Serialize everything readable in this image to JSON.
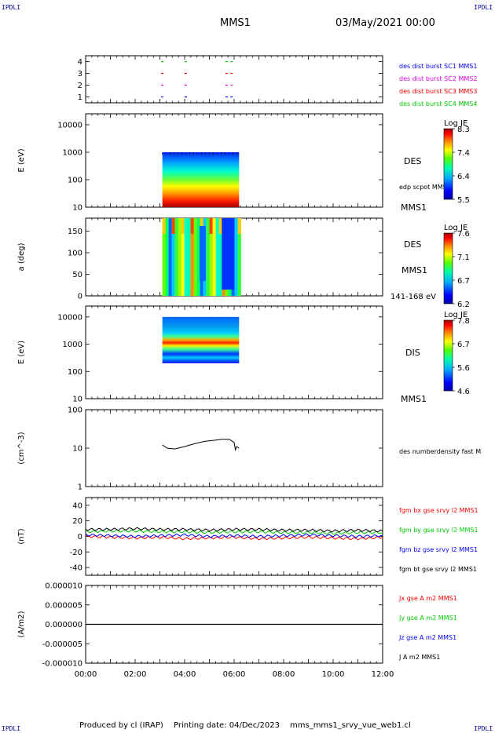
{
  "header": {
    "corner_tl": "IPDLI",
    "corner_tr": "IPDLI",
    "corner_bl": "IPDLI",
    "corner_br": "IPDLI",
    "mission": "MMS1",
    "datetime": "03/May/2021 00:00"
  },
  "footer": {
    "produced": "Produced by cl (IRAP)",
    "printing": "Printing date: 04/Dec/2023",
    "file": "mms_mms1_srvy_vue_web1.cl"
  },
  "colors": {
    "blue": "#0000ff",
    "magenta": "#dd00dd",
    "red": "#ff0000",
    "green": "#00cc00",
    "black": "#000000"
  },
  "chart_data": [
    {
      "type": "scatter",
      "panel": "burst-availability",
      "yticks": [
        "1",
        "2",
        "3",
        "4"
      ],
      "ylim": [
        0.5,
        4.5
      ],
      "legend": [
        {
          "label": "des dist burst SC1 MMS1",
          "color": "#0000ff"
        },
        {
          "label": "des dist burst SC2 MMS2",
          "color": "#dd00dd"
        },
        {
          "label": "des dist burst SC3 MMS3",
          "color": "#ff0000"
        },
        {
          "label": "des dist burst SC4 MMS4",
          "color": "#00cc00"
        }
      ],
      "burst_hours": [
        3.05,
        4.0,
        5.65,
        5.85
      ]
    },
    {
      "type": "heatmap",
      "panel": "des-energy",
      "ylabel": "E (eV)",
      "yticks": [
        "10",
        "100",
        "1000",
        "10000"
      ],
      "ylim": [
        10,
        25000
      ],
      "x_range_hours": [
        3.1,
        6.2
      ],
      "label_right": "DES",
      "label_right2": "edp scpot MMS1",
      "label_bottom": "MMS1",
      "colorbar": {
        "title": "Log JE",
        "min": 5.5,
        "max": 8.3,
        "ticks": [
          "8.3",
          "7.4",
          "6.4",
          "5.5"
        ]
      }
    },
    {
      "type": "heatmap",
      "panel": "des-pitch-angle",
      "ylabel": "a (deg)",
      "yticks": [
        "0",
        "50",
        "100",
        "150"
      ],
      "ylim": [
        0,
        180
      ],
      "x_range_hours": [
        3.1,
        6.2
      ],
      "label_right": "DES",
      "label_right2": "MMS1",
      "label_bottom": "141-168 eV",
      "colorbar": {
        "title": "Log JE",
        "min": 6.2,
        "max": 7.6,
        "ticks": [
          "7.6",
          "7.1",
          "6.7",
          "6.2"
        ]
      }
    },
    {
      "type": "heatmap",
      "panel": "dis-energy",
      "ylabel": "E (eV)",
      "yticks": [
        "10",
        "100",
        "1000",
        "10000"
      ],
      "ylim": [
        10,
        25000
      ],
      "x_range_hours": [
        3.1,
        6.2
      ],
      "label_right": "DIS",
      "label_bottom": "MMS1",
      "colorbar": {
        "title": "Log JE",
        "min": 4.6,
        "max": 7.8,
        "ticks": [
          "7.8",
          "6.7",
          "5.6",
          "4.6"
        ]
      }
    },
    {
      "type": "line",
      "panel": "density",
      "ylabel": "(cm^-3)",
      "yscale": "log",
      "yticks": [
        "1",
        "10",
        "100"
      ],
      "ylim": [
        1,
        100
      ],
      "legend": [
        {
          "label": "des numberdensity fast M",
          "color": "#000000"
        }
      ],
      "x": [
        3.1,
        3.3,
        3.6,
        4.0,
        4.4,
        4.8,
        5.2,
        5.5,
        5.8,
        6.0,
        6.05,
        6.1,
        6.2
      ],
      "y": [
        12,
        10,
        9.5,
        11,
        13,
        15,
        16,
        17,
        17,
        14,
        9,
        11,
        10
      ]
    },
    {
      "type": "line",
      "panel": "magnetic-field",
      "ylabel": "(nT)",
      "yticks": [
        "-40",
        "-20",
        "0",
        "20",
        "40"
      ],
      "ylim": [
        -50,
        50
      ],
      "legend": [
        {
          "label": "fgm bx gse srvy l2 MMS1",
          "color": "#ff0000"
        },
        {
          "label": "fgm by gse srvy l2 MMS1",
          "color": "#00cc00"
        },
        {
          "label": "fgm bz gse srvy l2 MMS1",
          "color": "#0000ff"
        },
        {
          "label": "fgm bt gse srvy l2 MMS1",
          "color": "#000000"
        }
      ],
      "x": [
        0,
        1,
        2,
        3,
        4,
        5,
        6,
        7,
        8,
        9,
        10,
        11,
        12
      ],
      "series": [
        {
          "name": "bx",
          "color": "#ff0000",
          "values": [
            0,
            -1,
            -2,
            -1,
            -3,
            -2,
            -1,
            -3,
            -2,
            -1,
            -2,
            -3,
            -1
          ]
        },
        {
          "name": "by",
          "color": "#00cc00",
          "values": [
            6,
            7,
            7,
            6,
            6,
            5,
            6,
            6,
            5,
            5,
            4,
            5,
            5
          ]
        },
        {
          "name": "bz",
          "color": "#0000ff",
          "values": [
            2,
            1,
            0,
            1,
            2,
            0,
            1,
            0,
            1,
            2,
            1,
            0,
            1
          ]
        },
        {
          "name": "bt",
          "color": "#000000",
          "values": [
            9,
            9,
            10,
            9,
            9,
            8,
            9,
            9,
            8,
            8,
            7,
            8,
            7
          ]
        }
      ]
    },
    {
      "type": "line",
      "panel": "current-density",
      "ylabel": "(A/m2)",
      "yticks": [
        "-0.000010",
        "-0.000005",
        "0.000000",
        "0.000005",
        "0.000010"
      ],
      "ylim": [
        -1e-05,
        1e-05
      ],
      "legend": [
        {
          "label": "Jx gse A m2 MMS1",
          "color": "#ff0000"
        },
        {
          "label": "Jy gse A m2 MMS1",
          "color": "#00cc00"
        },
        {
          "label": "Jz gse A m2 MMS1",
          "color": "#0000ff"
        },
        {
          "label": "J A m2 MMS1",
          "color": "#000000"
        }
      ],
      "x": [
        0,
        12
      ],
      "y": [
        0,
        0
      ]
    }
  ],
  "x_axis": {
    "ticks": [
      "00:00",
      "02:00",
      "04:00",
      "06:00",
      "08:00",
      "10:00",
      "12:00"
    ],
    "range_hours": [
      0,
      12
    ]
  }
}
